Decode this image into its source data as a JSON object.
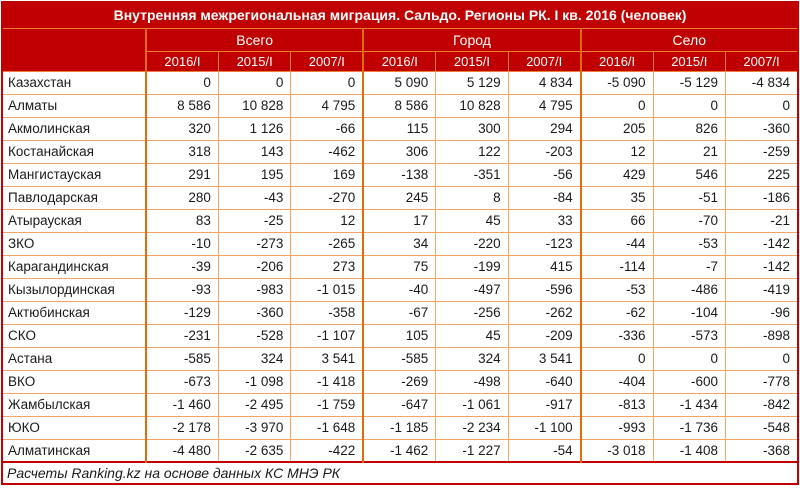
{
  "chart_data": {
    "type": "table",
    "title": "Внутренняя межрегиональная миграция. Сальдо. Регионы РК. I кв. 2016 (человек)",
    "column_groups": [
      "Всего",
      "Город",
      "Село"
    ],
    "period_headers": [
      "2016/I",
      "2015/I",
      "2007/I"
    ],
    "rows": [
      {
        "region": "Казахстан",
        "values": [
          "0",
          "0",
          "0",
          "5 090",
          "5 129",
          "4 834",
          "-5 090",
          "-5 129",
          "-4 834"
        ]
      },
      {
        "region": "Алматы",
        "values": [
          "8 586",
          "10 828",
          "4 795",
          "8 586",
          "10 828",
          "4 795",
          "0",
          "0",
          "0"
        ]
      },
      {
        "region": "Акмолинская",
        "values": [
          "320",
          "1 126",
          "-66",
          "115",
          "300",
          "294",
          "205",
          "826",
          "-360"
        ]
      },
      {
        "region": "Костанайская",
        "values": [
          "318",
          "143",
          "-462",
          "306",
          "122",
          "-203",
          "12",
          "21",
          "-259"
        ]
      },
      {
        "region": "Мангистауская",
        "values": [
          "291",
          "195",
          "169",
          "-138",
          "-351",
          "-56",
          "429",
          "546",
          "225"
        ]
      },
      {
        "region": "Павлодарская",
        "values": [
          "280",
          "-43",
          "-270",
          "245",
          "8",
          "-84",
          "35",
          "-51",
          "-186"
        ]
      },
      {
        "region": "Атырауская",
        "values": [
          "83",
          "-25",
          "12",
          "17",
          "45",
          "33",
          "66",
          "-70",
          "-21"
        ]
      },
      {
        "region": "ЗКО",
        "values": [
          "-10",
          "-273",
          "-265",
          "34",
          "-220",
          "-123",
          "-44",
          "-53",
          "-142"
        ]
      },
      {
        "region": "Карагандинская",
        "values": [
          "-39",
          "-206",
          "273",
          "75",
          "-199",
          "415",
          "-114",
          "-7",
          "-142"
        ]
      },
      {
        "region": "Кызылординская",
        "values": [
          "-93",
          "-983",
          "-1 015",
          "-40",
          "-497",
          "-596",
          "-53",
          "-486",
          "-419"
        ]
      },
      {
        "region": "Актюбинская",
        "values": [
          "-129",
          "-360",
          "-358",
          "-67",
          "-256",
          "-262",
          "-62",
          "-104",
          "-96"
        ]
      },
      {
        "region": "СКО",
        "values": [
          "-231",
          "-528",
          "-1 107",
          "105",
          "45",
          "-209",
          "-336",
          "-573",
          "-898"
        ]
      },
      {
        "region": "Астана",
        "values": [
          "-585",
          "324",
          "3 541",
          "-585",
          "324",
          "3 541",
          "0",
          "0",
          "0"
        ]
      },
      {
        "region": "ВКО",
        "values": [
          "-673",
          "-1 098",
          "-1 418",
          "-269",
          "-498",
          "-640",
          "-404",
          "-600",
          "-778"
        ]
      },
      {
        "region": "Жамбылская",
        "values": [
          "-1 460",
          "-2 495",
          "-1 759",
          "-647",
          "-1 061",
          "-917",
          "-813",
          "-1 434",
          "-842"
        ]
      },
      {
        "region": "ЮКО",
        "values": [
          "-2 178",
          "-3 970",
          "-1 648",
          "-1 185",
          "-2 234",
          "-1 100",
          "-993",
          "-1 736",
          "-548"
        ]
      },
      {
        "region": "Алматинская",
        "values": [
          "-4 480",
          "-2 635",
          "-422",
          "-1 462",
          "-1 227",
          "-54",
          "-3 018",
          "-1 408",
          "-368"
        ]
      }
    ],
    "footer": "Расчеты Ranking.kz на основе данных КС МНЭ РК"
  },
  "colors": {
    "header_bg": "#C00000",
    "outer_border": "#C00000",
    "inner_border": "#F4A460",
    "group_border": "#E26B0A",
    "header_text": "#FFFFFF",
    "body_text": "#1A1A1A"
  }
}
